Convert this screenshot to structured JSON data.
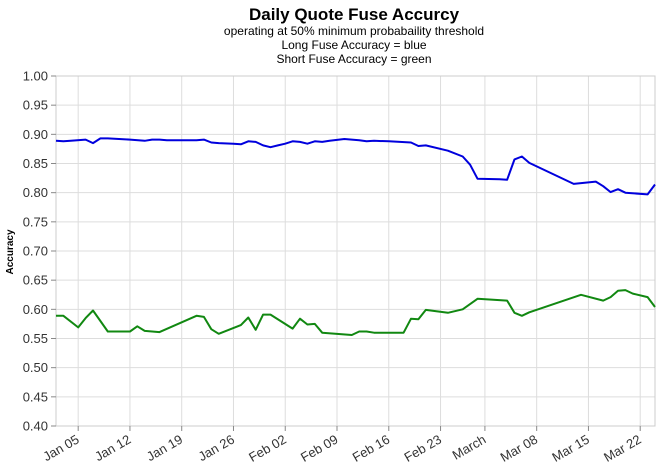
{
  "chart_data": {
    "type": "line",
    "title": "Daily Quote Fuse Accurcy",
    "subtitles": [
      "operating at 50% minimum probabaility threshold",
      "Long Fuse Accuracy = blue",
      "Short Fuse Accuracy = green"
    ],
    "xlabel": "",
    "ylabel": "Accuracy",
    "ylim": [
      0.4,
      1.0
    ],
    "y_ticks": [
      "0.40",
      "0.45",
      "0.50",
      "0.55",
      "0.60",
      "0.65",
      "0.70",
      "0.75",
      "0.80",
      "0.85",
      "0.90",
      "0.95",
      "1.00"
    ],
    "xlim": [
      "2023-01-02",
      "2023-03-24"
    ],
    "x_ticks": [
      {
        "date": "2023-01-05",
        "label": "Jan 05"
      },
      {
        "date": "2023-01-12",
        "label": "Jan 12"
      },
      {
        "date": "2023-01-19",
        "label": "Jan 19"
      },
      {
        "date": "2023-01-26",
        "label": "Jan 26"
      },
      {
        "date": "2023-02-02",
        "label": "Feb 02"
      },
      {
        "date": "2023-02-09",
        "label": "Feb 09"
      },
      {
        "date": "2023-02-16",
        "label": "Feb 16"
      },
      {
        "date": "2023-02-23",
        "label": "Feb 23"
      },
      {
        "date": "2023-03-01",
        "label": "March"
      },
      {
        "date": "2023-03-08",
        "label": "Mar 08"
      },
      {
        "date": "2023-03-15",
        "label": "Mar 15"
      },
      {
        "date": "2023-03-22",
        "label": "Mar 22"
      }
    ],
    "grid": true,
    "series": [
      {
        "color": "#0000dd",
        "points": [
          [
            "2023-01-02",
            0.889
          ],
          [
            "2023-01-03",
            0.888
          ],
          [
            "2023-01-04",
            0.889
          ],
          [
            "2023-01-06",
            0.891
          ],
          [
            "2023-01-07",
            0.885
          ],
          [
            "2023-01-08",
            0.893
          ],
          [
            "2023-01-09",
            0.893
          ],
          [
            "2023-01-12",
            0.891
          ],
          [
            "2023-01-14",
            0.889
          ],
          [
            "2023-01-15",
            0.891
          ],
          [
            "2023-01-16",
            0.891
          ],
          [
            "2023-01-17",
            0.89
          ],
          [
            "2023-01-19",
            0.89
          ],
          [
            "2023-01-21",
            0.89
          ],
          [
            "2023-01-22",
            0.891
          ],
          [
            "2023-01-23",
            0.886
          ],
          [
            "2023-01-24",
            0.885
          ],
          [
            "2023-01-26",
            0.884
          ],
          [
            "2023-01-27",
            0.883
          ],
          [
            "2023-01-28",
            0.888
          ],
          [
            "2023-01-29",
            0.887
          ],
          [
            "2023-01-30",
            0.881
          ],
          [
            "2023-01-31",
            0.878
          ],
          [
            "2023-02-01",
            0.881
          ],
          [
            "2023-02-02",
            0.884
          ],
          [
            "2023-02-03",
            0.888
          ],
          [
            "2023-02-04",
            0.887
          ],
          [
            "2023-02-05",
            0.884
          ],
          [
            "2023-02-06",
            0.888
          ],
          [
            "2023-02-07",
            0.887
          ],
          [
            "2023-02-08",
            0.889
          ],
          [
            "2023-02-10",
            0.892
          ],
          [
            "2023-02-12",
            0.89
          ],
          [
            "2023-02-13",
            0.888
          ],
          [
            "2023-02-14",
            0.889
          ],
          [
            "2023-02-16",
            0.888
          ],
          [
            "2023-02-19",
            0.886
          ],
          [
            "2023-02-20",
            0.88
          ],
          [
            "2023-02-21",
            0.881
          ],
          [
            "2023-02-24",
            0.872
          ],
          [
            "2023-02-26",
            0.862
          ],
          [
            "2023-02-27",
            0.848
          ],
          [
            "2023-02-28",
            0.824
          ],
          [
            "2023-03-03",
            0.823
          ],
          [
            "2023-03-04",
            0.822
          ],
          [
            "2023-03-05",
            0.857
          ],
          [
            "2023-03-06",
            0.862
          ],
          [
            "2023-03-07",
            0.851
          ],
          [
            "2023-03-13",
            0.815
          ],
          [
            "2023-03-16",
            0.819
          ],
          [
            "2023-03-17",
            0.811
          ],
          [
            "2023-03-18",
            0.801
          ],
          [
            "2023-03-19",
            0.806
          ],
          [
            "2023-03-20",
            0.8
          ],
          [
            "2023-03-23",
            0.797
          ],
          [
            "2023-03-24",
            0.814
          ]
        ]
      },
      {
        "color": "#118811",
        "points": [
          [
            "2023-01-02",
            0.589
          ],
          [
            "2023-01-03",
            0.589
          ],
          [
            "2023-01-05",
            0.569
          ],
          [
            "2023-01-06",
            0.585
          ],
          [
            "2023-01-07",
            0.598
          ],
          [
            "2023-01-09",
            0.562
          ],
          [
            "2023-01-12",
            0.562
          ],
          [
            "2023-01-13",
            0.571
          ],
          [
            "2023-01-14",
            0.563
          ],
          [
            "2023-01-16",
            0.561
          ],
          [
            "2023-01-21",
            0.589
          ],
          [
            "2023-01-22",
            0.587
          ],
          [
            "2023-01-23",
            0.566
          ],
          [
            "2023-01-24",
            0.558
          ],
          [
            "2023-01-27",
            0.573
          ],
          [
            "2023-01-28",
            0.586
          ],
          [
            "2023-01-29",
            0.565
          ],
          [
            "2023-01-30",
            0.591
          ],
          [
            "2023-01-31",
            0.591
          ],
          [
            "2023-02-03",
            0.567
          ],
          [
            "2023-02-04",
            0.584
          ],
          [
            "2023-02-05",
            0.574
          ],
          [
            "2023-02-06",
            0.575
          ],
          [
            "2023-02-07",
            0.56
          ],
          [
            "2023-02-11",
            0.556
          ],
          [
            "2023-02-12",
            0.562
          ],
          [
            "2023-02-13",
            0.562
          ],
          [
            "2023-02-14",
            0.56
          ],
          [
            "2023-02-18",
            0.56
          ],
          [
            "2023-02-19",
            0.584
          ],
          [
            "2023-02-20",
            0.583
          ],
          [
            "2023-02-21",
            0.599
          ],
          [
            "2023-02-24",
            0.594
          ],
          [
            "2023-02-26",
            0.6
          ],
          [
            "2023-02-28",
            0.618
          ],
          [
            "2023-03-04",
            0.615
          ],
          [
            "2023-03-05",
            0.594
          ],
          [
            "2023-03-06",
            0.589
          ],
          [
            "2023-03-07",
            0.595
          ],
          [
            "2023-03-14",
            0.625
          ],
          [
            "2023-03-17",
            0.615
          ],
          [
            "2023-03-18",
            0.621
          ],
          [
            "2023-03-19",
            0.632
          ],
          [
            "2023-03-20",
            0.633
          ],
          [
            "2023-03-21",
            0.627
          ],
          [
            "2023-03-23",
            0.621
          ],
          [
            "2023-03-24",
            0.604
          ]
        ]
      }
    ]
  }
}
